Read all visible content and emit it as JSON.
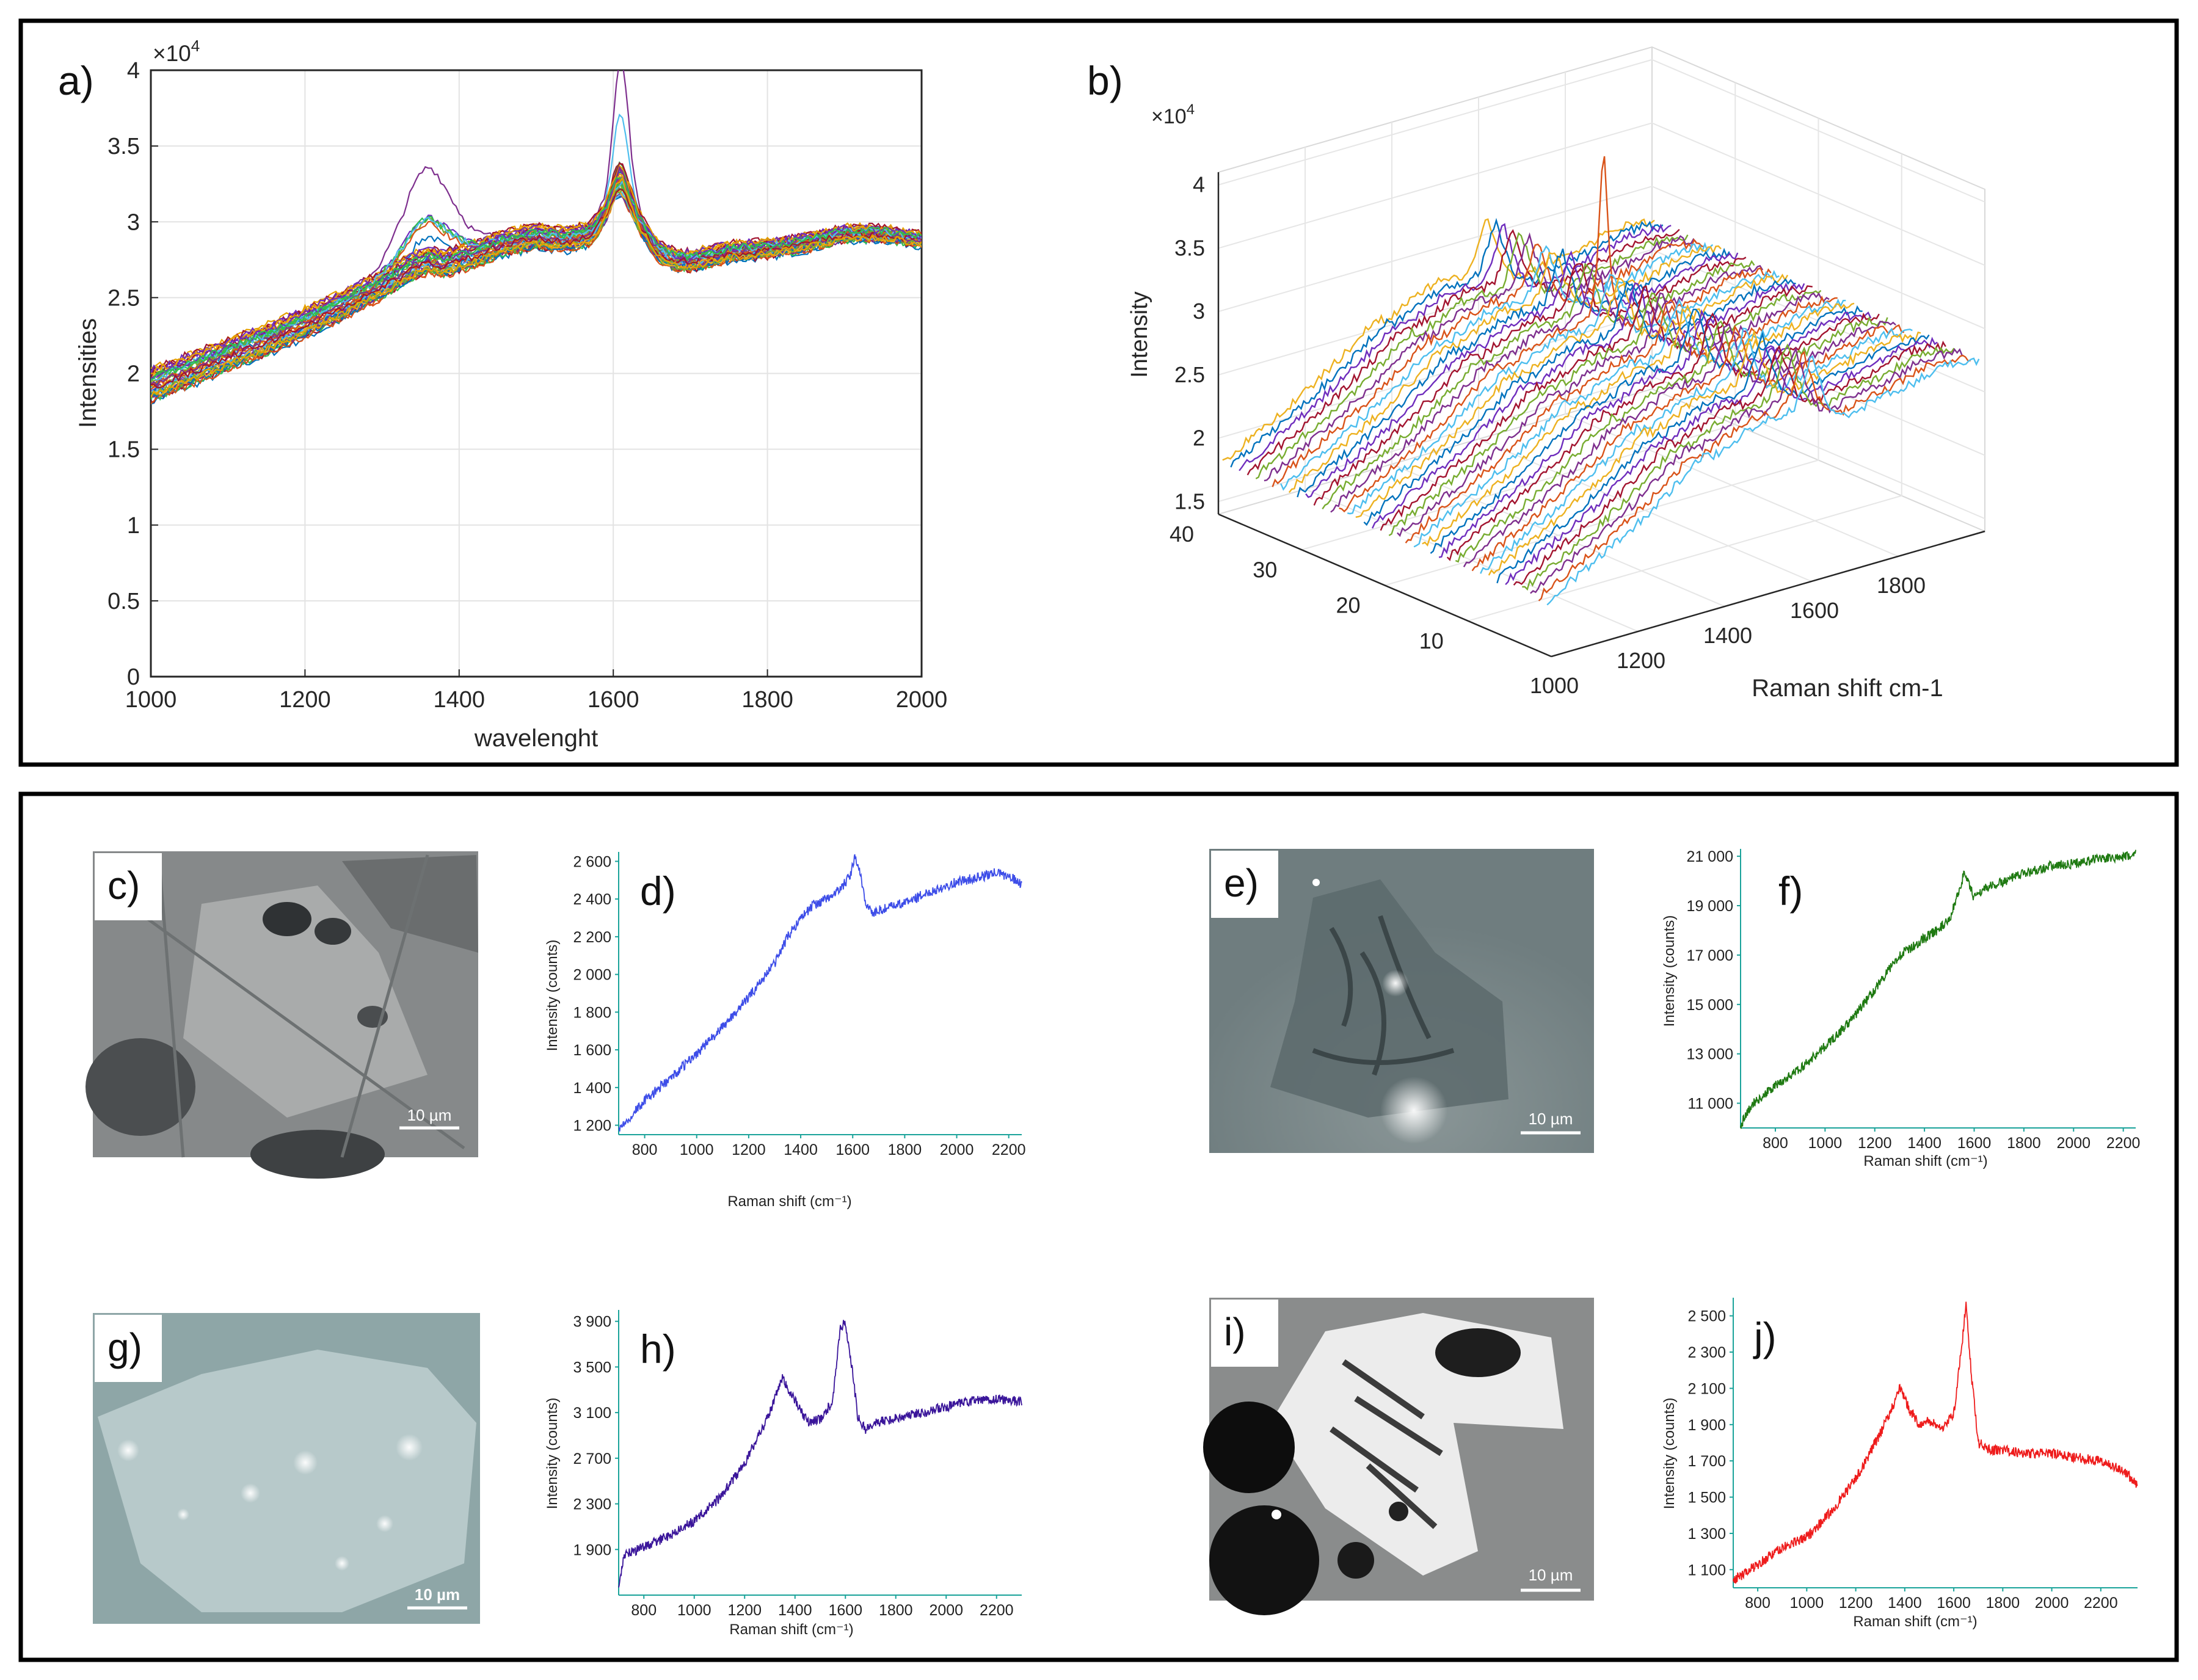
{
  "panel_letters": {
    "a": "a)",
    "b": "b)",
    "c": "c)",
    "d": "d)",
    "e": "e)",
    "f": "f)",
    "g": "g)",
    "h": "h)",
    "i": "i)",
    "j": "j)"
  },
  "scale_bar_label": "10 µm",
  "colors": {
    "matlab": [
      "#0072BD",
      "#D95319",
      "#EDB120",
      "#7E2F8E",
      "#77AC30",
      "#4DBEEE",
      "#A2142F",
      "#6F2DBD",
      "#2FBF4F",
      "#E6A100"
    ],
    "d_spectrum": "#3d4de8",
    "f_spectrum": "#1f7a12",
    "h_spectrum": "#3a159a",
    "j_spectrum": "#ee1b1b",
    "mini_axis": "#1aa39a"
  },
  "chart_data": [
    {
      "id": "a",
      "type": "line",
      "multiplier_label": "×10",
      "multiplier_exp": "4",
      "xlabel": "wavelenght",
      "ylabel": "Intensities",
      "xlim": [
        1000,
        2000
      ],
      "ylim": [
        0,
        4
      ],
      "xticks": [
        "1000",
        "1200",
        "1400",
        "1600",
        "1800",
        "2000"
      ],
      "yticks": [
        "0",
        "0.5",
        "1",
        "1.5",
        "2",
        "2.5",
        "3",
        "3.5",
        "4"
      ],
      "grid": true,
      "n_series": 40,
      "series_shape": {
        "x": [
          1000,
          1050,
          1100,
          1150,
          1200,
          1250,
          1300,
          1340,
          1360,
          1380,
          1420,
          1460,
          1500,
          1540,
          1570,
          1590,
          1600,
          1610,
          1620,
          1640,
          1660,
          1680,
          1700,
          1750,
          1800,
          1850,
          1900,
          1950,
          2000
        ],
        "y": [
          1.92,
          2.02,
          2.12,
          2.22,
          2.33,
          2.45,
          2.58,
          2.7,
          2.74,
          2.72,
          2.78,
          2.86,
          2.9,
          2.88,
          2.92,
          3.05,
          3.15,
          3.2,
          3.12,
          2.94,
          2.8,
          2.75,
          2.74,
          2.8,
          2.82,
          2.86,
          2.92,
          2.92,
          2.88
        ],
        "peak_max": {
          "x": 1610,
          "y": 4.0
        },
        "d_band_max": {
          "x": 1360,
          "y": 3.25
        }
      }
    },
    {
      "id": "b",
      "type": "line",
      "projection": "3d-waterfall",
      "multiplier_label": "×10",
      "multiplier_exp": "4",
      "xlabel": "Raman shift cm-1",
      "ylabel": "Intensity",
      "x_ticks": [
        "1000",
        "1200",
        "1400",
        "1600",
        "1800"
      ],
      "y_ticks": [
        "10",
        "20",
        "30",
        "40"
      ],
      "z_ticks": [
        "1.5",
        "2",
        "2.5",
        "3",
        "3.5",
        "4"
      ],
      "xlim": [
        1000,
        2000
      ],
      "ylim": [
        0,
        40
      ],
      "zlim": [
        1.4,
        4.1
      ],
      "n_series": 40,
      "grid": true
    },
    {
      "id": "d",
      "type": "line",
      "xlabel": "Raman shift (cm⁻¹)",
      "ylabel": "Intensity (counts)",
      "xlim": [
        700,
        2250
      ],
      "ylim": [
        1150,
        2650
      ],
      "xticks": [
        "800",
        "1000",
        "1200",
        "1400",
        "1600",
        "1800",
        "2000",
        "2200"
      ],
      "yticks": [
        "1 200",
        "1 400",
        "1 600",
        "1 800",
        "2 000",
        "2 200",
        "2 400",
        "2 600"
      ],
      "shape": {
        "x": [
          700,
          800,
          900,
          1000,
          1100,
          1200,
          1300,
          1350,
          1400,
          1450,
          1500,
          1550,
          1590,
          1610,
          1630,
          1650,
          1680,
          1700,
          1800,
          1900,
          2000,
          2100,
          2150,
          2200,
          2250
        ],
        "y": [
          1180,
          1330,
          1450,
          1580,
          1720,
          1880,
          2060,
          2200,
          2300,
          2370,
          2400,
          2450,
          2520,
          2630,
          2520,
          2380,
          2320,
          2340,
          2380,
          2440,
          2490,
          2520,
          2540,
          2520,
          2480
        ]
      }
    },
    {
      "id": "f",
      "type": "line",
      "xlabel": "Raman shift (cm⁻¹)",
      "ylabel": "Intensity (counts)",
      "xlim": [
        660,
        2250
      ],
      "ylim": [
        10000,
        21300
      ],
      "xticks": [
        "800",
        "1000",
        "1200",
        "1400",
        "1600",
        "1800",
        "2000",
        "2200"
      ],
      "yticks": [
        "11 000",
        "13 000",
        "15 000",
        "17 000",
        "19 000",
        "21 000"
      ],
      "shape": {
        "x": [
          660,
          700,
          800,
          900,
          1000,
          1100,
          1200,
          1300,
          1350,
          1400,
          1450,
          1500,
          1560,
          1600,
          1640,
          1700,
          1800,
          1900,
          2000,
          2100,
          2200,
          2250
        ],
        "y": [
          10100,
          10900,
          11700,
          12400,
          13300,
          14300,
          15600,
          17000,
          17300,
          17700,
          18000,
          18400,
          20300,
          19300,
          19700,
          19900,
          20300,
          20600,
          20700,
          20900,
          20950,
          21100
        ]
      }
    },
    {
      "id": "h",
      "type": "line",
      "xlabel": "Raman shift (cm⁻¹)",
      "ylabel": "Intensity (counts)",
      "xlim": [
        700,
        2300
      ],
      "ylim": [
        1500,
        4000
      ],
      "xticks": [
        "800",
        "1000",
        "1200",
        "1400",
        "1600",
        "1800",
        "2000",
        "2200"
      ],
      "yticks": [
        "1 900",
        "2 300",
        "2 700",
        "3 100",
        "3 500",
        "3 900"
      ],
      "shape": {
        "x": [
          700,
          720,
          800,
          900,
          1000,
          1100,
          1200,
          1300,
          1350,
          1400,
          1450,
          1500,
          1550,
          1580,
          1600,
          1620,
          1650,
          1680,
          1700,
          1800,
          1900,
          2000,
          2100,
          2200,
          2300
        ],
        "y": [
          1550,
          1850,
          1920,
          2020,
          2150,
          2350,
          2650,
          3100,
          3400,
          3200,
          3020,
          3040,
          3200,
          3850,
          3880,
          3600,
          3050,
          2950,
          3000,
          3050,
          3100,
          3150,
          3200,
          3220,
          3200
        ]
      }
    },
    {
      "id": "j",
      "type": "line",
      "xlabel": "Raman shift (cm⁻¹)",
      "ylabel": "Intensity (counts)",
      "xlim": [
        700,
        2350
      ],
      "ylim": [
        1000,
        2600
      ],
      "xticks": [
        "800",
        "1000",
        "1200",
        "1400",
        "1600",
        "1800",
        "2000",
        "2200"
      ],
      "yticks": [
        "1 100",
        "1 300",
        "1 500",
        "1 700",
        "1 900",
        "2 100",
        "2 300",
        "2 500"
      ],
      "shape": {
        "x": [
          700,
          800,
          900,
          1000,
          1100,
          1200,
          1300,
          1350,
          1380,
          1420,
          1460,
          1500,
          1550,
          1600,
          1630,
          1650,
          1670,
          1700,
          1750,
          1800,
          1900,
          2000,
          2100,
          2200,
          2300,
          2350
        ],
        "y": [
          1040,
          1130,
          1220,
          1280,
          1420,
          1600,
          1850,
          2000,
          2100,
          1980,
          1900,
          1920,
          1880,
          1960,
          2300,
          2560,
          2200,
          1800,
          1760,
          1760,
          1740,
          1740,
          1720,
          1700,
          1640,
          1560
        ]
      }
    }
  ]
}
